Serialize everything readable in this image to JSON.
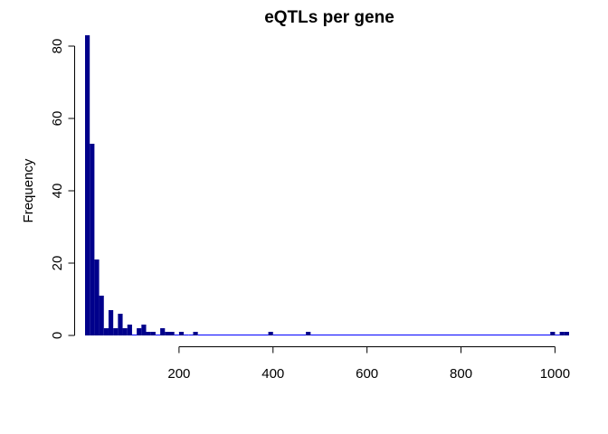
{
  "chart_data": {
    "type": "bar",
    "subtype": "histogram",
    "title": "eQTLs per gene",
    "xlabel": "",
    "ylabel": "Frequency",
    "bin_width": 10,
    "xlim": [
      0,
      1030
    ],
    "ylim": [
      0,
      83
    ],
    "x_ticks": [
      200,
      400,
      600,
      800,
      1000
    ],
    "y_ticks": [
      0,
      20,
      40,
      60,
      80
    ],
    "grid": false,
    "colors": {
      "bar_fill": "#00008B",
      "bar_border": "#0000FF"
    },
    "bins": [
      {
        "start": 0,
        "end": 10,
        "count": 83
      },
      {
        "start": 10,
        "end": 20,
        "count": 53
      },
      {
        "start": 20,
        "end": 30,
        "count": 21
      },
      {
        "start": 30,
        "end": 40,
        "count": 11
      },
      {
        "start": 40,
        "end": 50,
        "count": 2
      },
      {
        "start": 50,
        "end": 60,
        "count": 7
      },
      {
        "start": 60,
        "end": 70,
        "count": 2
      },
      {
        "start": 70,
        "end": 80,
        "count": 6
      },
      {
        "start": 80,
        "end": 90,
        "count": 2
      },
      {
        "start": 90,
        "end": 100,
        "count": 3
      },
      {
        "start": 100,
        "end": 110,
        "count": 0
      },
      {
        "start": 110,
        "end": 120,
        "count": 2
      },
      {
        "start": 120,
        "end": 130,
        "count": 3
      },
      {
        "start": 130,
        "end": 140,
        "count": 1
      },
      {
        "start": 140,
        "end": 150,
        "count": 1
      },
      {
        "start": 150,
        "end": 160,
        "count": 0
      },
      {
        "start": 160,
        "end": 170,
        "count": 2
      },
      {
        "start": 170,
        "end": 180,
        "count": 1
      },
      {
        "start": 180,
        "end": 190,
        "count": 1
      },
      {
        "start": 190,
        "end": 200,
        "count": 0
      },
      {
        "start": 200,
        "end": 210,
        "count": 1
      },
      {
        "start": 210,
        "end": 220,
        "count": 0
      },
      {
        "start": 220,
        "end": 230,
        "count": 0
      },
      {
        "start": 230,
        "end": 240,
        "count": 1
      },
      {
        "start": 240,
        "end": 390,
        "count": 0
      },
      {
        "start": 390,
        "end": 400,
        "count": 1
      },
      {
        "start": 400,
        "end": 470,
        "count": 0
      },
      {
        "start": 470,
        "end": 480,
        "count": 1
      },
      {
        "start": 480,
        "end": 990,
        "count": 0
      },
      {
        "start": 990,
        "end": 1000,
        "count": 1
      },
      {
        "start": 1000,
        "end": 1010,
        "count": 0
      },
      {
        "start": 1010,
        "end": 1020,
        "count": 1
      },
      {
        "start": 1020,
        "end": 1030,
        "count": 1
      }
    ]
  }
}
